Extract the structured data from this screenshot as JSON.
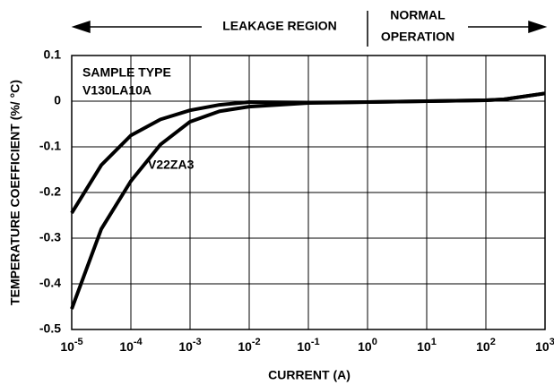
{
  "chart_data": {
    "type": "line",
    "xscale": "log",
    "grid": true,
    "xlabel": "CURRENT (A)",
    "ylabel": "TEMPERATURE COEFFICIENT (%/ °C)",
    "header": {
      "left": "LEAKAGE REGION",
      "right": [
        "NORMAL",
        "OPERATION"
      ]
    },
    "legend_title": "SAMPLE TYPE",
    "x": [
      1e-05,
      3.16e-05,
      0.0001,
      0.000316,
      0.001,
      0.00316,
      0.01,
      0.1,
      1,
      10,
      100,
      200,
      1000
    ],
    "series": [
      {
        "name": "V130LA10A",
        "color": "#000000",
        "values": [
          -0.245,
          -0.14,
          -0.075,
          -0.04,
          -0.02,
          -0.008,
          -0.002,
          -0.003,
          -0.002,
          0,
          0.002,
          0.004,
          0.017
        ]
      },
      {
        "name": "V22ZA3",
        "color": "#000000",
        "values": [
          -0.455,
          -0.28,
          -0.175,
          -0.095,
          -0.045,
          -0.022,
          -0.012,
          -0.004,
          -0.002,
          0,
          0.002,
          0.004,
          0.017
        ]
      }
    ],
    "xlim": [
      1e-05,
      1000
    ],
    "xticks": [
      {
        "value": 1e-05,
        "label": "10-5"
      },
      {
        "value": 0.0001,
        "label": "10-4"
      },
      {
        "value": 0.001,
        "label": "10-3"
      },
      {
        "value": 0.01,
        "label": "10-2"
      },
      {
        "value": 0.1,
        "label": "10-1"
      },
      {
        "value": 1,
        "label": "100"
      },
      {
        "value": 10,
        "label": "101"
      },
      {
        "value": 100,
        "label": "102"
      },
      {
        "value": 1000,
        "label": "103"
      }
    ],
    "ylim": [
      -0.5,
      0.1
    ],
    "yticks": [
      0.1,
      0,
      -0.1,
      -0.2,
      -0.3,
      -0.4,
      -0.5
    ]
  }
}
